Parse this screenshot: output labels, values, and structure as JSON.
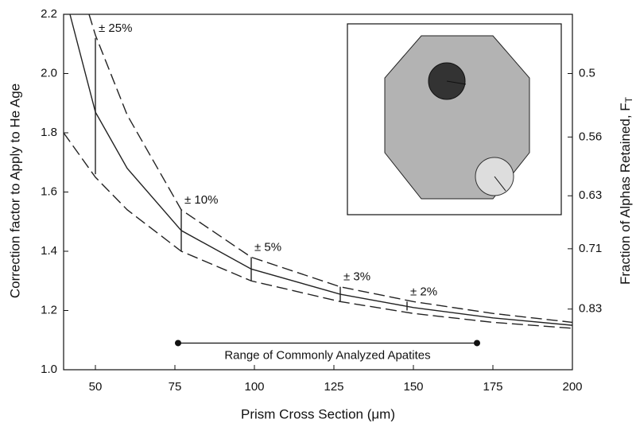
{
  "chart_data": {
    "type": "line",
    "x_label": "Prism Cross Section (μm)",
    "y_label": "Correction factor to Apply to He Age",
    "y2_label": "Fraction of Alphas Retained, F",
    "y2_label_subscript": "T",
    "xlim": [
      40,
      200
    ],
    "xticks": [
      50,
      75,
      100,
      125,
      150,
      175,
      200
    ],
    "ylim": [
      1.0,
      2.2
    ],
    "yticks": [
      {
        "value": 1.0,
        "label": "1.0"
      },
      1.2,
      1.4,
      1.6,
      1.8,
      {
        "value": 2.0,
        "label": "2.0"
      },
      2.2
    ],
    "y2scale": "reciprocal",
    "y2lim": [
      1.0,
      0.4545
    ],
    "y2ticks": [
      0.5,
      0.56,
      0.63,
      0.71,
      0.83
    ],
    "series": [
      {
        "color": "#222",
        "dash": false,
        "x": [
          42,
          50,
          60,
          77,
          99,
          127,
          150,
          175,
          200
        ],
        "values": [
          2.2,
          1.87,
          1.68,
          1.47,
          1.34,
          1.255,
          1.21,
          1.175,
          1.15
        ]
      },
      {
        "color": "#222",
        "dash": true,
        "x": [
          48,
          50,
          60,
          77,
          99,
          127,
          150,
          175,
          200
        ],
        "values": [
          2.2,
          2.13,
          1.86,
          1.54,
          1.38,
          1.28,
          1.23,
          1.19,
          1.16
        ]
      },
      {
        "color": "#222",
        "dash": true,
        "x": [
          40,
          50,
          60,
          77,
          99,
          127,
          150,
          175,
          200
        ],
        "values": [
          1.8,
          1.65,
          1.54,
          1.4,
          1.3,
          1.23,
          1.19,
          1.16,
          1.14
        ]
      }
    ],
    "error_bars": [
      {
        "label": "± 25%",
        "x": 50,
        "low": 1.66,
        "high": 2.12
      },
      {
        "label": "± 10%",
        "x": 77,
        "low": 1.4,
        "high": 1.54
      },
      {
        "label": "± 5%",
        "x": 99,
        "low": 1.3,
        "high": 1.38
      },
      {
        "label": "± 3%",
        "x": 127,
        "low": 1.23,
        "high": 1.28
      },
      {
        "label": "± 2%",
        "x": 148,
        "low": 1.2,
        "high": 1.23
      }
    ],
    "range": {
      "label": "Range of Commonly Analyzed Apatites",
      "start": 76,
      "end": 170,
      "y": 1.09
    }
  }
}
